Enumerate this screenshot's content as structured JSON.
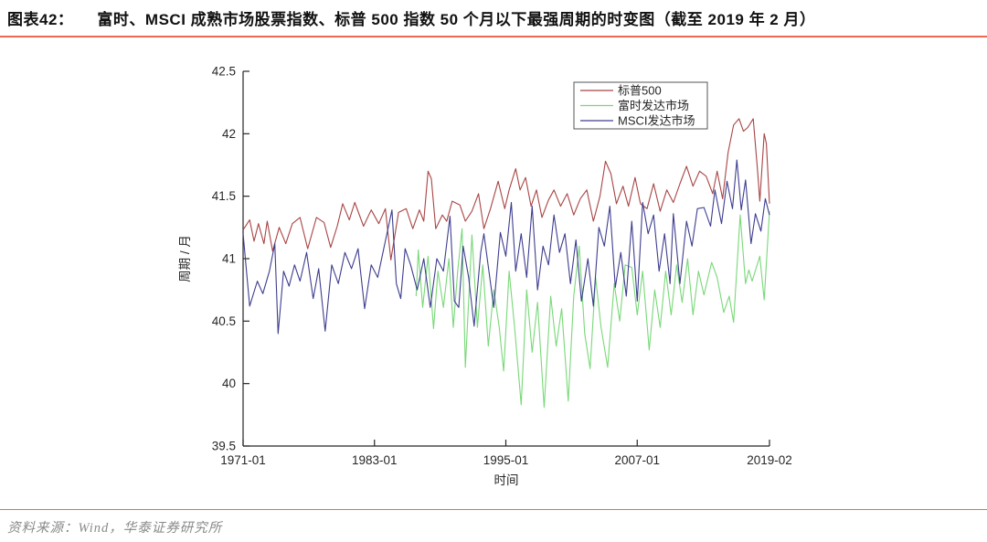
{
  "header": {
    "figure_label": "图表42：",
    "title": "富时、MSCI 成熟市场股票指数、标普 500 指数 50 个月以下最强周期的时变图（截至 2019 年 2 月）"
  },
  "footer": {
    "source": "资料来源：Wind，华泰证券研究所"
  },
  "colors": {
    "accent_rule": "#ef6852",
    "axis": "#262626",
    "sp500": "#a84444",
    "ftse": "#79d879",
    "msci": "#3d3d8f"
  },
  "chart_data": {
    "type": "line",
    "title": "",
    "xlabel": "时间",
    "ylabel": "周期 / 月",
    "xlim": [
      1971.0,
      2019.083
    ],
    "ylim": [
      39.5,
      42.5
    ],
    "grid": false,
    "legend_position": "inside-top-center",
    "x_ticks": [
      {
        "x": 1971.0,
        "label": "1971-01"
      },
      {
        "x": 1983.0,
        "label": "1983-01"
      },
      {
        "x": 1995.0,
        "label": "1995-01"
      },
      {
        "x": 2007.0,
        "label": "2007-01"
      },
      {
        "x": 2019.083,
        "label": "2019-02"
      }
    ],
    "y_ticks": [
      {
        "y": 39.5,
        "label": "39.5"
      },
      {
        "y": 40.0,
        "label": "40"
      },
      {
        "y": 40.5,
        "label": "40.5"
      },
      {
        "y": 41.0,
        "label": "41"
      },
      {
        "y": 41.5,
        "label": "41.5"
      },
      {
        "y": 42.0,
        "label": "42"
      },
      {
        "y": 42.5,
        "label": "42.5"
      }
    ],
    "series": [
      {
        "name": "标普500",
        "color": "#a84444",
        "points": [
          [
            1971.0,
            41.23
          ],
          [
            1971.6,
            41.31
          ],
          [
            1972.0,
            41.14
          ],
          [
            1972.4,
            41.28
          ],
          [
            1972.9,
            41.12
          ],
          [
            1973.2,
            41.3
          ],
          [
            1973.7,
            41.06
          ],
          [
            1974.3,
            41.25
          ],
          [
            1974.9,
            41.12
          ],
          [
            1975.5,
            41.28
          ],
          [
            1976.2,
            41.33
          ],
          [
            1976.9,
            41.08
          ],
          [
            1977.7,
            41.33
          ],
          [
            1978.4,
            41.29
          ],
          [
            1979.0,
            41.09
          ],
          [
            1979.6,
            41.26
          ],
          [
            1980.1,
            41.44
          ],
          [
            1980.7,
            41.31
          ],
          [
            1981.2,
            41.45
          ],
          [
            1982.0,
            41.26
          ],
          [
            1982.7,
            41.39
          ],
          [
            1983.4,
            41.28
          ],
          [
            1984.0,
            41.4
          ],
          [
            1984.5,
            40.99
          ],
          [
            1985.2,
            41.37
          ],
          [
            1985.9,
            41.4
          ],
          [
            1986.5,
            41.24
          ],
          [
            1987.1,
            41.39
          ],
          [
            1987.5,
            41.3
          ],
          [
            1987.9,
            41.7
          ],
          [
            1988.2,
            41.64
          ],
          [
            1988.6,
            41.24
          ],
          [
            1989.2,
            41.35
          ],
          [
            1989.6,
            41.3
          ],
          [
            1990.1,
            41.46
          ],
          [
            1990.8,
            41.43
          ],
          [
            1991.3,
            41.3
          ],
          [
            1991.9,
            41.38
          ],
          [
            1992.5,
            41.52
          ],
          [
            1993.0,
            41.24
          ],
          [
            1993.6,
            41.4
          ],
          [
            1994.3,
            41.62
          ],
          [
            1994.9,
            41.4
          ],
          [
            1995.3,
            41.55
          ],
          [
            1995.9,
            41.72
          ],
          [
            1996.3,
            41.55
          ],
          [
            1996.8,
            41.65
          ],
          [
            1997.3,
            41.42
          ],
          [
            1997.8,
            41.55
          ],
          [
            1998.3,
            41.33
          ],
          [
            1998.9,
            41.47
          ],
          [
            1999.4,
            41.55
          ],
          [
            2000.0,
            41.42
          ],
          [
            2000.6,
            41.52
          ],
          [
            2001.2,
            41.35
          ],
          [
            2001.8,
            41.48
          ],
          [
            2002.4,
            41.55
          ],
          [
            2003.0,
            41.3
          ],
          [
            2003.6,
            41.5
          ],
          [
            2004.1,
            41.78
          ],
          [
            2004.6,
            41.68
          ],
          [
            2005.1,
            41.44
          ],
          [
            2005.7,
            41.58
          ],
          [
            2006.2,
            41.42
          ],
          [
            2006.8,
            41.65
          ],
          [
            2007.3,
            41.44
          ],
          [
            2007.9,
            41.4
          ],
          [
            2008.5,
            41.6
          ],
          [
            2009.1,
            41.38
          ],
          [
            2009.7,
            41.55
          ],
          [
            2010.3,
            41.45
          ],
          [
            2010.9,
            41.6
          ],
          [
            2011.5,
            41.74
          ],
          [
            2012.1,
            41.58
          ],
          [
            2012.7,
            41.7
          ],
          [
            2013.3,
            41.66
          ],
          [
            2013.9,
            41.52
          ],
          [
            2014.3,
            41.7
          ],
          [
            2014.8,
            41.48
          ],
          [
            2015.3,
            41.85
          ],
          [
            2015.8,
            42.07
          ],
          [
            2016.3,
            42.12
          ],
          [
            2016.7,
            42.02
          ],
          [
            2017.1,
            42.05
          ],
          [
            2017.6,
            42.12
          ],
          [
            2018.0,
            41.7
          ],
          [
            2018.2,
            41.46
          ],
          [
            2018.6,
            42.0
          ],
          [
            2018.8,
            41.92
          ],
          [
            2019.083,
            41.44
          ]
        ]
      },
      {
        "name": "富时发达市场",
        "color": "#79d879",
        "points": [
          [
            1986.8,
            40.7
          ],
          [
            1987.0,
            41.07
          ],
          [
            1987.4,
            40.61
          ],
          [
            1987.9,
            41.02
          ],
          [
            1988.4,
            40.44
          ],
          [
            1988.8,
            40.9
          ],
          [
            1989.3,
            40.61
          ],
          [
            1989.8,
            41.0
          ],
          [
            1990.2,
            40.45
          ],
          [
            1990.6,
            40.9
          ],
          [
            1991.0,
            41.24
          ],
          [
            1991.3,
            40.13
          ],
          [
            1991.9,
            41.19
          ],
          [
            1992.4,
            40.45
          ],
          [
            1992.9,
            40.95
          ],
          [
            1993.4,
            40.3
          ],
          [
            1993.9,
            40.75
          ],
          [
            1994.4,
            40.45
          ],
          [
            1994.8,
            40.1
          ],
          [
            1995.3,
            40.9
          ],
          [
            1995.8,
            40.45
          ],
          [
            1996.4,
            39.83
          ],
          [
            1996.9,
            40.75
          ],
          [
            1997.4,
            40.25
          ],
          [
            1997.9,
            40.65
          ],
          [
            1998.5,
            39.81
          ],
          [
            1999.1,
            40.7
          ],
          [
            1999.6,
            40.3
          ],
          [
            2000.1,
            40.6
          ],
          [
            2000.7,
            39.86
          ],
          [
            2001.2,
            40.7
          ],
          [
            2001.7,
            41.1
          ],
          [
            2002.2,
            40.4
          ],
          [
            2002.7,
            40.12
          ],
          [
            2003.2,
            40.85
          ],
          [
            2003.7,
            40.45
          ],
          [
            2004.3,
            40.13
          ],
          [
            2004.9,
            40.8
          ],
          [
            2005.4,
            40.5
          ],
          [
            2005.9,
            40.95
          ],
          [
            2006.5,
            40.93
          ],
          [
            2007.0,
            40.55
          ],
          [
            2007.5,
            40.9
          ],
          [
            2008.1,
            40.27
          ],
          [
            2008.6,
            40.75
          ],
          [
            2009.1,
            40.45
          ],
          [
            2009.6,
            40.9
          ],
          [
            2010.1,
            40.55
          ],
          [
            2010.6,
            40.95
          ],
          [
            2011.1,
            40.65
          ],
          [
            2011.6,
            41.0
          ],
          [
            2012.1,
            40.55
          ],
          [
            2012.6,
            40.9
          ],
          [
            2013.1,
            40.71
          ],
          [
            2013.8,
            40.97
          ],
          [
            2014.3,
            40.85
          ],
          [
            2014.9,
            40.57
          ],
          [
            2015.4,
            40.7
          ],
          [
            2015.8,
            40.49
          ],
          [
            2016.4,
            41.35
          ],
          [
            2016.9,
            40.8
          ],
          [
            2017.2,
            40.91
          ],
          [
            2017.5,
            40.82
          ],
          [
            2018.2,
            41.02
          ],
          [
            2018.6,
            40.67
          ],
          [
            2019.083,
            41.38
          ]
        ]
      },
      {
        "name": "MSCI发达市场",
        "color": "#3d3d8f",
        "points": [
          [
            1971.0,
            41.2
          ],
          [
            1971.6,
            40.62
          ],
          [
            1972.3,
            40.82
          ],
          [
            1972.8,
            40.72
          ],
          [
            1973.4,
            40.9
          ],
          [
            1973.9,
            41.12
          ],
          [
            1974.2,
            40.4
          ],
          [
            1974.7,
            40.9
          ],
          [
            1975.2,
            40.78
          ],
          [
            1975.7,
            40.95
          ],
          [
            1976.2,
            40.82
          ],
          [
            1976.8,
            41.05
          ],
          [
            1977.4,
            40.68
          ],
          [
            1977.9,
            40.92
          ],
          [
            1978.5,
            40.42
          ],
          [
            1979.1,
            40.95
          ],
          [
            1979.7,
            40.8
          ],
          [
            1980.3,
            41.05
          ],
          [
            1980.9,
            40.92
          ],
          [
            1981.5,
            41.08
          ],
          [
            1982.1,
            40.6
          ],
          [
            1982.7,
            40.95
          ],
          [
            1983.3,
            40.85
          ],
          [
            1983.9,
            41.1
          ],
          [
            1984.6,
            41.39
          ],
          [
            1985.0,
            40.8
          ],
          [
            1985.4,
            40.68
          ],
          [
            1985.8,
            41.08
          ],
          [
            1986.3,
            40.95
          ],
          [
            1986.9,
            40.75
          ],
          [
            1987.5,
            41.0
          ],
          [
            1988.1,
            40.61
          ],
          [
            1988.7,
            41.0
          ],
          [
            1989.3,
            40.9
          ],
          [
            1989.9,
            41.34
          ],
          [
            1990.3,
            40.66
          ],
          [
            1990.7,
            40.61
          ],
          [
            1991.1,
            41.1
          ],
          [
            1991.6,
            40.85
          ],
          [
            1992.1,
            40.46
          ],
          [
            1992.7,
            41.05
          ],
          [
            1993.0,
            41.2
          ],
          [
            1993.9,
            40.61
          ],
          [
            1994.5,
            41.21
          ],
          [
            1995.0,
            41.02
          ],
          [
            1995.5,
            41.45
          ],
          [
            1995.9,
            40.9
          ],
          [
            1996.4,
            41.2
          ],
          [
            1996.9,
            40.85
          ],
          [
            1997.4,
            41.42
          ],
          [
            1997.9,
            40.75
          ],
          [
            1998.4,
            41.1
          ],
          [
            1998.9,
            40.95
          ],
          [
            1999.4,
            41.35
          ],
          [
            1999.9,
            41.05
          ],
          [
            2000.4,
            41.2
          ],
          [
            2000.9,
            40.8
          ],
          [
            2001.4,
            41.15
          ],
          [
            2001.9,
            40.66
          ],
          [
            2002.5,
            41.0
          ],
          [
            2003.0,
            40.62
          ],
          [
            2003.5,
            41.25
          ],
          [
            2004.0,
            41.1
          ],
          [
            2004.5,
            41.42
          ],
          [
            2005.0,
            40.77
          ],
          [
            2005.5,
            41.05
          ],
          [
            2006.0,
            40.7
          ],
          [
            2006.5,
            41.3
          ],
          [
            2007.0,
            40.66
          ],
          [
            2007.5,
            41.45
          ],
          [
            2008.0,
            41.2
          ],
          [
            2008.5,
            41.35
          ],
          [
            2009.0,
            40.9
          ],
          [
            2009.5,
            41.2
          ],
          [
            2010.0,
            40.8
          ],
          [
            2010.3,
            41.36
          ],
          [
            2010.9,
            40.8
          ],
          [
            2011.5,
            41.3
          ],
          [
            2012.0,
            41.1
          ],
          [
            2012.5,
            41.4
          ],
          [
            2013.1,
            41.41
          ],
          [
            2013.7,
            41.26
          ],
          [
            2014.1,
            41.55
          ],
          [
            2014.7,
            41.28
          ],
          [
            2015.2,
            41.62
          ],
          [
            2015.7,
            41.4
          ],
          [
            2016.1,
            41.79
          ],
          [
            2016.5,
            41.39
          ],
          [
            2016.9,
            41.63
          ],
          [
            2017.4,
            41.12
          ],
          [
            2017.8,
            41.36
          ],
          [
            2018.3,
            41.22
          ],
          [
            2018.7,
            41.48
          ],
          [
            2019.083,
            41.35
          ]
        ]
      }
    ]
  }
}
